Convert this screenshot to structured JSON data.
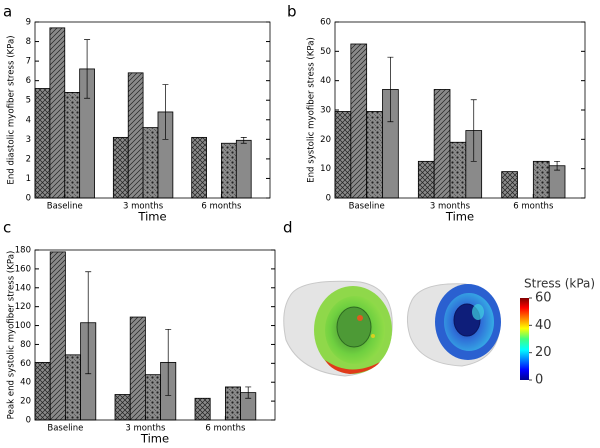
{
  "chart_data": [
    {
      "type": "bar",
      "panel_label": "a",
      "ylabel": "End diastolic myofiber stress (KPa)",
      "xlabel": "Time",
      "categories": [
        "Baseline",
        "3 months",
        "6 months"
      ],
      "ylim": [
        0,
        9
      ],
      "yticks": [
        0,
        1,
        2,
        3,
        4,
        5,
        6,
        7,
        8,
        9
      ],
      "series": [
        {
          "color": "#8a8a8a",
          "hatch": "cross",
          "values": [
            5.6,
            3.1,
            3.1
          ]
        },
        {
          "color": "#8a8a8a",
          "hatch": "diagonal",
          "values": [
            8.7,
            6.4,
            null
          ]
        },
        {
          "color": "#8a8a8a",
          "hatch": "dots",
          "values": [
            5.4,
            3.6,
            2.8
          ]
        },
        {
          "color": "#8a8a8a",
          "hatch": "none",
          "values": [
            6.6,
            4.4,
            2.95
          ],
          "errors": [
            1.5,
            1.4,
            0.15
          ]
        }
      ]
    },
    {
      "type": "bar",
      "panel_label": "b",
      "ylabel": "End systolic myofiber stress (KPa)",
      "xlabel": "Time",
      "categories": [
        "Baseline",
        "3 months",
        "6 months"
      ],
      "ylim": [
        0,
        60
      ],
      "yticks": [
        0,
        10,
        20,
        30,
        40,
        50,
        60
      ],
      "series": [
        {
          "color": "#8a8a8a",
          "hatch": "cross",
          "values": [
            29.5,
            12.5,
            9
          ]
        },
        {
          "color": "#8a8a8a",
          "hatch": "diagonal",
          "values": [
            52.5,
            37,
            null
          ]
        },
        {
          "color": "#8a8a8a",
          "hatch": "dots",
          "values": [
            29.5,
            19,
            12.5
          ]
        },
        {
          "color": "#8a8a8a",
          "hatch": "none",
          "values": [
            37,
            23,
            11
          ],
          "errors": [
            11,
            10.5,
            1.5
          ]
        }
      ]
    },
    {
      "type": "bar",
      "panel_label": "c",
      "ylabel": "Peak end systolic myofiber stress (KPa)",
      "xlabel": "Time",
      "categories": [
        "Baseline",
        "3 months",
        "6 months"
      ],
      "ylim": [
        0,
        180
      ],
      "yticks": [
        0,
        20,
        40,
        60,
        80,
        100,
        120,
        140,
        160,
        180
      ],
      "series": [
        {
          "color": "#8a8a8a",
          "hatch": "cross",
          "values": [
            61,
            27,
            23
          ]
        },
        {
          "color": "#8a8a8a",
          "hatch": "diagonal",
          "values": [
            178,
            109,
            null
          ]
        },
        {
          "color": "#8a8a8a",
          "hatch": "dots",
          "values": [
            69,
            48,
            35
          ]
        },
        {
          "color": "#8a8a8a",
          "hatch": "none",
          "values": [
            103,
            61,
            29
          ],
          "errors": [
            54,
            35,
            6
          ]
        }
      ]
    },
    {
      "type": "colorbar",
      "panel_label": "d",
      "label": "Stress (kPa)",
      "clim": [
        0,
        60
      ],
      "cticks": [
        0,
        20,
        40,
        60
      ]
    }
  ]
}
